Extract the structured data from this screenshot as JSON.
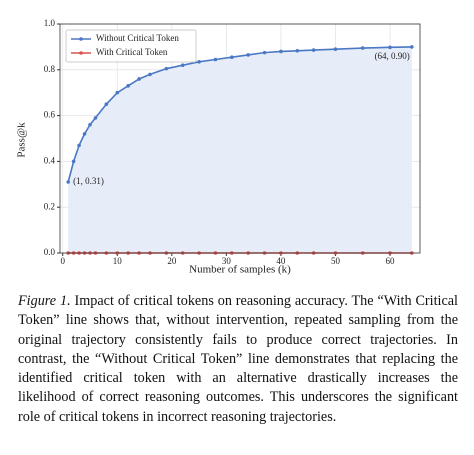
{
  "chart_data": {
    "type": "line",
    "x_label": "Number of samples (k)",
    "y_label": "Pass@k",
    "x": [
      1,
      2,
      3,
      4,
      5,
      6,
      8,
      10,
      12,
      14,
      16,
      19,
      22,
      25,
      28,
      31,
      34,
      37,
      40,
      43,
      46,
      50,
      55,
      60,
      64
    ],
    "series": [
      {
        "name": "Without Critical Token",
        "color": "#4a78c4",
        "fill": "#e6edf8",
        "values": [
          0.31,
          0.4,
          0.47,
          0.52,
          0.56,
          0.59,
          0.65,
          0.7,
          0.73,
          0.76,
          0.78,
          0.805,
          0.82,
          0.835,
          0.845,
          0.855,
          0.865,
          0.875,
          0.88,
          0.883,
          0.886,
          0.89,
          0.895,
          0.898,
          0.9
        ]
      },
      {
        "name": "With Critical Token",
        "color": "#d9534f",
        "values": [
          0,
          0,
          0,
          0,
          0,
          0,
          0,
          0,
          0,
          0,
          0,
          0,
          0,
          0,
          0,
          0,
          0,
          0,
          0,
          0,
          0,
          0,
          0,
          0,
          0
        ]
      }
    ],
    "xlim": [
      -0.5,
      65.5
    ],
    "ylim": [
      0,
      1
    ],
    "xticks": [
      0,
      10,
      20,
      30,
      40,
      50,
      60
    ],
    "yticks": [
      {
        "value": 0,
        "label": "0.0"
      },
      {
        "value": 0.2,
        "label": "0.2"
      },
      {
        "value": 0.4,
        "label": "0.4"
      },
      {
        "value": 0.6,
        "label": "0.6"
      },
      {
        "value": 0.8,
        "label": "0.8"
      },
      {
        "value": 1,
        "label": "1.0"
      }
    ],
    "grid": true,
    "legend": "upper left",
    "annotations": [
      {
        "x": 1,
        "y": 0.31,
        "text": "(1, 0.31)"
      },
      {
        "x": 64,
        "y": 0.9,
        "text": "(64, 0.90)"
      }
    ]
  },
  "caption": {
    "label": "Figure 1.",
    "text": "Impact of critical tokens on reasoning accuracy. The “With Critical Token” line shows that, without intervention, repeated sampling from the original trajectory consistently fails to produce correct trajectories. In contrast, the “Without Critical Token” line demonstrates that replacing the identified critical token with an alternative drastically increases the likelihood of correct reasoning outcomes. This underscores the significant role of critical tokens in incorrect reasoning trajectories."
  }
}
